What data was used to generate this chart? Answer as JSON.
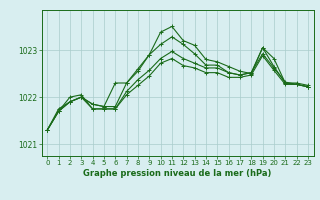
{
  "title": "Graphe pression niveau de la mer (hPa)",
  "bg_color": "#d8eef0",
  "grid_color": "#aacccc",
  "line_color": "#1a6b1a",
  "xlim": [
    -0.5,
    23.5
  ],
  "ylim": [
    1020.75,
    1023.85
  ],
  "yticks": [
    1021,
    1022,
    1023
  ],
  "xticks": [
    0,
    1,
    2,
    3,
    4,
    5,
    6,
    7,
    8,
    9,
    10,
    11,
    12,
    13,
    14,
    15,
    16,
    17,
    18,
    19,
    20,
    21,
    22,
    23
  ],
  "series": [
    [
      1021.3,
      1021.7,
      1021.9,
      1022.0,
      1021.85,
      1021.8,
      1021.8,
      1022.3,
      1022.6,
      1022.9,
      1023.38,
      1023.5,
      1023.2,
      1023.1,
      1022.8,
      1022.75,
      1022.65,
      1022.55,
      1022.5,
      1023.05,
      1022.65,
      1022.3,
      1022.3,
      1022.25
    ],
    [
      1021.3,
      1021.7,
      1021.9,
      1022.0,
      1021.85,
      1021.8,
      1022.3,
      1022.3,
      1022.55,
      1022.9,
      1023.12,
      1023.28,
      1023.12,
      1022.92,
      1022.68,
      1022.68,
      1022.52,
      1022.47,
      1022.52,
      1023.05,
      1022.82,
      1022.3,
      1022.27,
      1022.22
    ],
    [
      1021.3,
      1021.75,
      1021.9,
      1022.0,
      1021.75,
      1021.75,
      1021.75,
      1022.05,
      1022.25,
      1022.45,
      1022.72,
      1022.82,
      1022.67,
      1022.62,
      1022.52,
      1022.52,
      1022.42,
      1022.42,
      1022.47,
      1022.88,
      1022.57,
      1022.27,
      1022.27,
      1022.22
    ],
    [
      1021.3,
      1021.7,
      1022.0,
      1022.05,
      1021.75,
      1021.75,
      1021.75,
      1022.12,
      1022.37,
      1022.57,
      1022.82,
      1022.97,
      1022.82,
      1022.72,
      1022.62,
      1022.62,
      1022.52,
      1022.47,
      1022.52,
      1022.92,
      1022.62,
      1022.32,
      1022.27,
      1022.22
    ]
  ]
}
